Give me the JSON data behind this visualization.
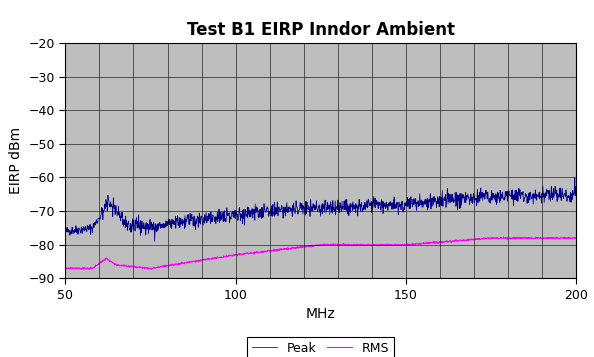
{
  "title": "Test B1 EIRP Inndor Ambient",
  "xlabel": "MHz",
  "ylabel": "EIRP dBm",
  "xlim": [
    50,
    200
  ],
  "ylim": [
    -90,
    -20
  ],
  "yticks": [
    -90,
    -80,
    -70,
    -60,
    -50,
    -40,
    -30,
    -20
  ],
  "xticks": [
    50,
    100,
    150,
    200
  ],
  "x_minor_ticks": 10,
  "y_minor_ticks": 10,
  "peak_color": "#00008B",
  "rms_color": "#FF00FF",
  "bg_color": "#BEBEBE",
  "fig_bg_color": "#FFFFFF",
  "grid_color": "#000000",
  "title_fontsize": 12,
  "axis_label_fontsize": 10,
  "tick_fontsize": 9,
  "legend_labels": [
    "Peak",
    "RMS"
  ],
  "peak_base_x": [
    50,
    58,
    63,
    68,
    75,
    85,
    100,
    120,
    130,
    150,
    170,
    200
  ],
  "peak_base_y": [
    -76,
    -75,
    -67,
    -74,
    -75,
    -73,
    -71,
    -69,
    -69,
    -68,
    -66,
    -65
  ],
  "rms_base_x": [
    50,
    58,
    62,
    65,
    75,
    100,
    125,
    150,
    175,
    200
  ],
  "rms_base_y": [
    -87,
    -87,
    -84,
    -86,
    -87,
    -83,
    -80,
    -80,
    -78,
    -78
  ]
}
